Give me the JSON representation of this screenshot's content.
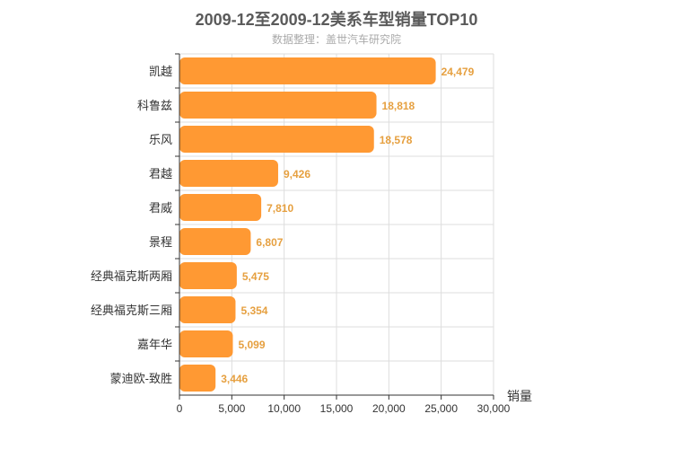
{
  "chart_data": {
    "type": "bar",
    "orientation": "horizontal",
    "title": "2009-12至2009-12美系车型销量TOP10",
    "subtitle": "数据整理：盖世汽车研究院",
    "xlabel": "销量",
    "ylabel": "",
    "xlim": [
      0,
      30000
    ],
    "x_ticks": [
      0,
      5000,
      10000,
      15000,
      20000,
      25000,
      30000
    ],
    "x_tick_labels": [
      "0",
      "5,000",
      "10,000",
      "15,000",
      "20,000",
      "25,000",
      "30,000"
    ],
    "categories": [
      "凯越",
      "科鲁兹",
      "乐风",
      "君越",
      "君威",
      "景程",
      "经典福克斯两厢",
      "经典福克斯三厢",
      "嘉年华",
      "蒙迪欧-致胜"
    ],
    "values": [
      24479,
      18818,
      18578,
      9426,
      7810,
      6807,
      5475,
      5354,
      5099,
      3446
    ],
    "value_labels": [
      "24,479",
      "18,818",
      "18,578",
      "9,426",
      "7,810",
      "6,807",
      "5,475",
      "5,354",
      "5,099",
      "3,446"
    ],
    "grid": true,
    "bar_color": "#ff9933",
    "label_color": "#e6a040"
  }
}
